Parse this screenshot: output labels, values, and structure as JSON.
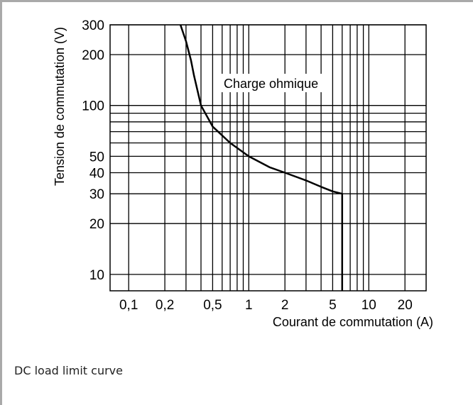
{
  "caption": "DC load limit curve",
  "chart_data": {
    "type": "line",
    "xlabel": "Courant de commutation (A)",
    "ylabel": "Tension de commutation (V)",
    "x_scale": "log",
    "y_scale": "log",
    "xlim": [
      0.07,
      30
    ],
    "ylim": [
      8,
      300
    ],
    "grid": true,
    "x_ticks": [
      {
        "value": 0.1,
        "label": "0,1"
      },
      {
        "value": 0.2,
        "label": "0,2"
      },
      {
        "value": 0.5,
        "label": "0,5"
      },
      {
        "value": 1,
        "label": "1"
      },
      {
        "value": 2,
        "label": "2"
      },
      {
        "value": 5,
        "label": "5"
      },
      {
        "value": 10,
        "label": "10"
      },
      {
        "value": 20,
        "label": "20"
      }
    ],
    "y_ticks": [
      {
        "value": 10,
        "label": "10"
      },
      {
        "value": 20,
        "label": "20"
      },
      {
        "value": 30,
        "label": "30"
      },
      {
        "value": 40,
        "label": "40"
      },
      {
        "value": 50,
        "label": "50"
      },
      {
        "value": 100,
        "label": "100"
      },
      {
        "value": 200,
        "label": "200"
      },
      {
        "value": 300,
        "label": "300"
      }
    ],
    "x_gridlines": [
      0.1,
      0.2,
      0.3,
      0.4,
      0.5,
      0.6,
      0.7,
      0.8,
      0.9,
      1,
      2,
      3,
      4,
      5,
      6,
      7,
      8,
      9,
      10,
      20
    ],
    "y_gridlines": [
      10,
      20,
      30,
      40,
      50,
      60,
      70,
      80,
      90,
      100,
      200,
      300
    ],
    "annotation": "Charge ohmique",
    "series": [
      {
        "x": [
          0.27,
          0.3,
          0.33,
          0.35,
          0.4,
          0.5,
          0.7,
          1.0,
          1.5,
          2.0,
          3.0,
          4.0,
          5.0,
          6.0,
          6.0
        ],
        "y": [
          300,
          240,
          185,
          150,
          100,
          75,
          60,
          50,
          43,
          40,
          36,
          33,
          31,
          30,
          8
        ]
      }
    ]
  }
}
